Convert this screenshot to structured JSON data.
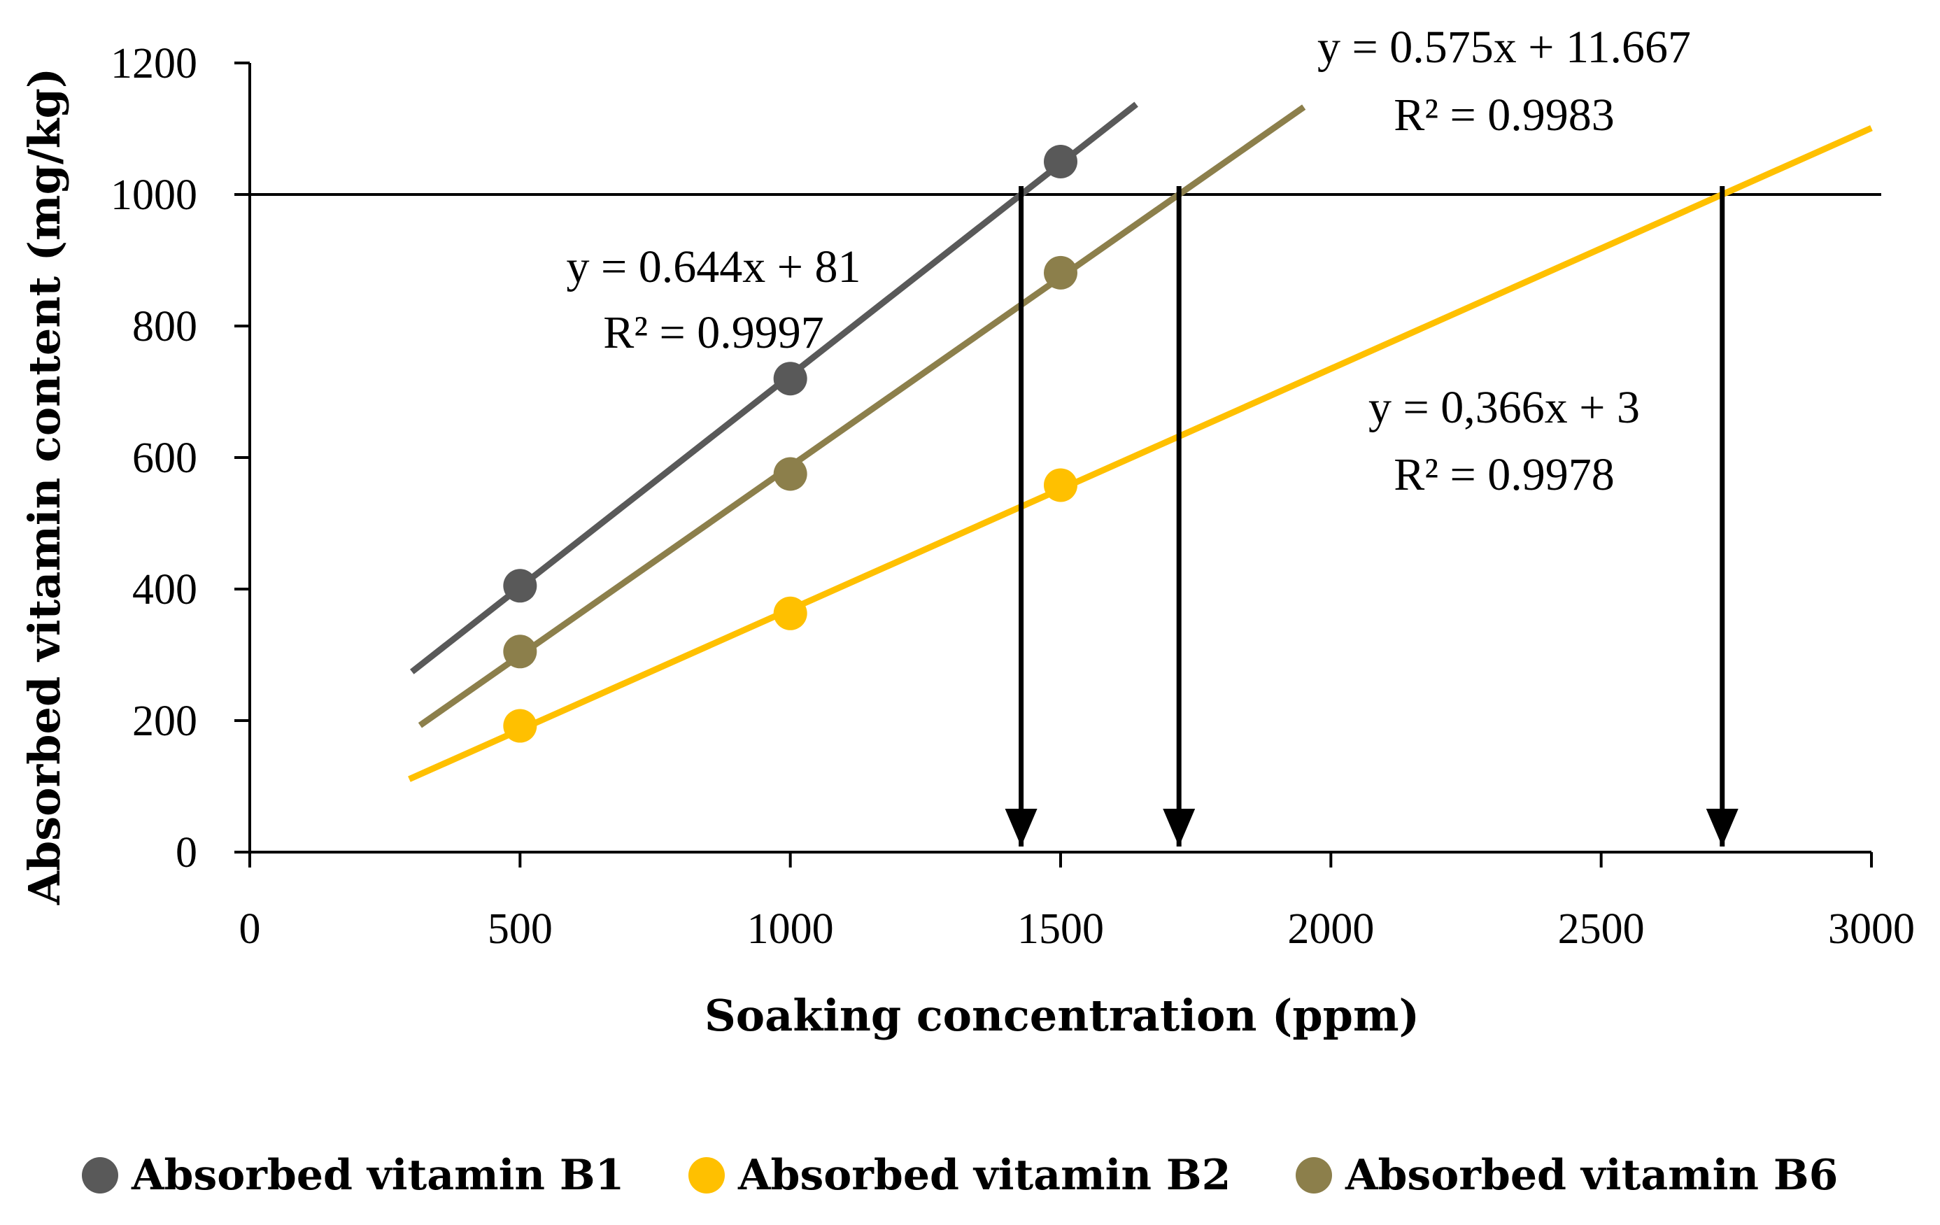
{
  "chart_data": {
    "type": "scatter",
    "title": "",
    "xlabel": "Soaking concentration (ppm)",
    "ylabel": "Absorbed vitamin content (mg/kg)",
    "xlim": [
      0,
      3000
    ],
    "ylim": [
      0,
      1200
    ],
    "x_ticks": [
      "0",
      "500",
      "1000",
      "1500",
      "2000",
      "2500",
      "3000"
    ],
    "y_ticks": [
      "0",
      "200",
      "400",
      "600",
      "800",
      "1000",
      "1200"
    ],
    "grid": false,
    "legend_position": "bottom",
    "reference_line": {
      "y": 1000
    },
    "series": [
      {
        "name": "Absorbed vitamin B1",
        "color": "#595959",
        "x": [
          500,
          1000,
          1500
        ],
        "y": [
          405,
          720,
          1050
        ],
        "trendline": {
          "slope": 0.644,
          "intercept": 81,
          "x_range": [
            300,
            1640
          ]
        },
        "equation": "y = 0.644x + 81",
        "r2": "R² = 0.9997",
        "crossing_x": 1427
      },
      {
        "name": "Absorbed vitamin B2",
        "color": "#FFC000",
        "x": [
          500,
          1000,
          1500
        ],
        "y": [
          192,
          363,
          558
        ],
        "trendline": {
          "slope": 0.366,
          "intercept": 3,
          "x_range": [
            295,
            3000
          ]
        },
        "equation": "y = 0,366x + 3",
        "r2": "R² = 0.9978",
        "crossing_x": 2724
      },
      {
        "name": "Absorbed vitamin B6",
        "color": "#8C7F4B",
        "x": [
          500,
          1000,
          1500
        ],
        "y": [
          305,
          575,
          881
        ],
        "trendline": {
          "slope": 0.575,
          "intercept": 11.667,
          "x_range": [
            315,
            1950
          ]
        },
        "equation": "y = 0.575x + 11.667",
        "r2": "R² = 0.9983",
        "crossing_x": 1719
      }
    ]
  }
}
